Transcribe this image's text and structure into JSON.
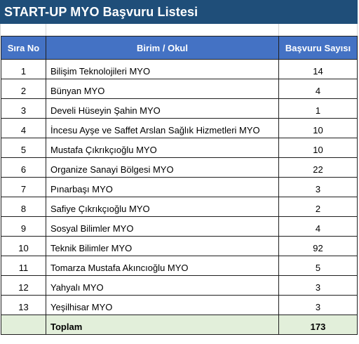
{
  "title": "START-UP MYO Başvuru Listesi",
  "columns": {
    "no": "Sıra No",
    "unit": "Birim / Okul",
    "count": "Başvuru Sayısı"
  },
  "rows": [
    {
      "no": "1",
      "unit": "Bilişim Teknolojileri MYO",
      "count": "14"
    },
    {
      "no": "2",
      "unit": "Bünyan MYO",
      "count": "4"
    },
    {
      "no": "3",
      "unit": "Develi Hüseyin Şahin MYO",
      "count": "1"
    },
    {
      "no": "4",
      "unit": "İncesu Ayşe ve Saffet Arslan Sağlık Hizmetleri MYO",
      "count": "10"
    },
    {
      "no": "5",
      "unit": "Mustafa Çıkrıkçıoğlu MYO",
      "count": "10"
    },
    {
      "no": "6",
      "unit": "Organize Sanayi Bölgesi MYO",
      "count": "22"
    },
    {
      "no": "7",
      "unit": "Pınarbaşı MYO",
      "count": "3"
    },
    {
      "no": "8",
      "unit": "Safiye Çıkrıkçıoğlu MYO",
      "count": "2"
    },
    {
      "no": "9",
      "unit": "Sosyal Bilimler MYO",
      "count": "4"
    },
    {
      "no": "10",
      "unit": "Teknik Bilimler MYO",
      "count": "92"
    },
    {
      "no": "11",
      "unit": "Tomarza Mustafa Akıncıoğlu MYO",
      "count": "5"
    },
    {
      "no": "12",
      "unit": "Yahyalı MYO",
      "count": "3"
    },
    {
      "no": "13",
      "unit": "Yeşilhisar MYO",
      "count": "3"
    }
  ],
  "total": {
    "label": "Toplam",
    "count": "173"
  },
  "colors": {
    "title_bg": "#1f4e79",
    "header_bg": "#4472c4",
    "total_bg": "#e2efda"
  }
}
